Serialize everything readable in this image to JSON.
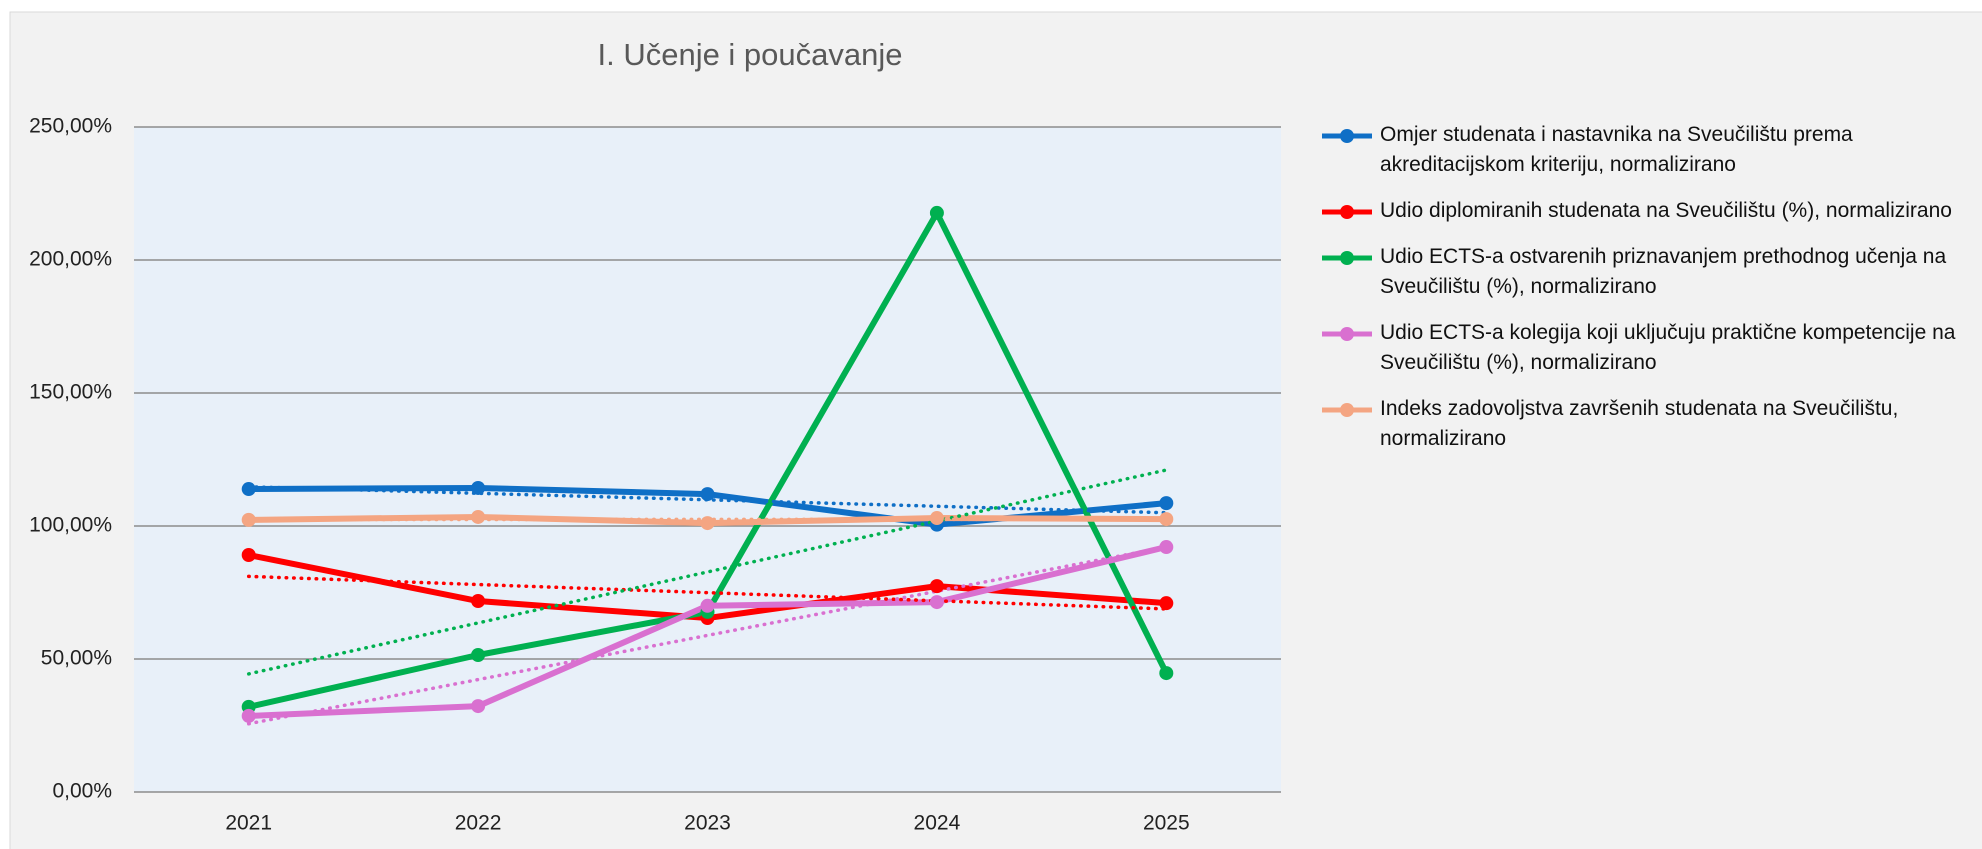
{
  "chart_data": {
    "type": "line",
    "title": "I. Učenje i poučavanje",
    "categories": [
      "2021",
      "2022",
      "2023",
      "2024",
      "2025"
    ],
    "series": [
      {
        "name": "Omjer studenata i nastavnika na Sveučilištu prema akreditacijskom kriteriju, normalizirano",
        "color": "#0f6fc6",
        "values": [
          113.9,
          114.3,
          112,
          100.5,
          108.6
        ]
      },
      {
        "name": "Udio diplomiranih studenata na Sveučilištu (%), normalizirano",
        "color": "#ff0000",
        "values": [
          89.1,
          71.8,
          65.4,
          77.4,
          71
        ]
      },
      {
        "name": "Udio ECTS-a ostvarenih priznavanjem prethodnog učenja na Sveučilištu (%), normalizirano",
        "color": "#00b050",
        "values": [
          32,
          51.5,
          67.7,
          217.7,
          44.7
        ]
      },
      {
        "name": "Udio ECTS-a kolegija koji uključuju praktične kompetencije na Sveučilištu (%), normalizirano",
        "color": "#d970d0",
        "values": [
          28.6,
          32.3,
          70,
          71.4,
          92.1
        ]
      },
      {
        "name": "Indeks zadovoljstva završenih studenata na Sveučilištu, normalizirano",
        "color": "#f4a582",
        "values": [
          102.3,
          103.4,
          101.1,
          103,
          102.6
        ]
      }
    ],
    "ylim": [
      0,
      250
    ],
    "yticks": [
      {
        "value": 0,
        "label": "0,00%"
      },
      {
        "value": 50,
        "label": "50,00%"
      },
      {
        "value": 100,
        "label": "100,00%"
      },
      {
        "value": 150,
        "label": "150,00%"
      },
      {
        "value": 200,
        "label": "200,00%"
      },
      {
        "value": 250,
        "label": "250,00%"
      }
    ],
    "grid": true,
    "trendline": "linear",
    "legend": "right"
  }
}
